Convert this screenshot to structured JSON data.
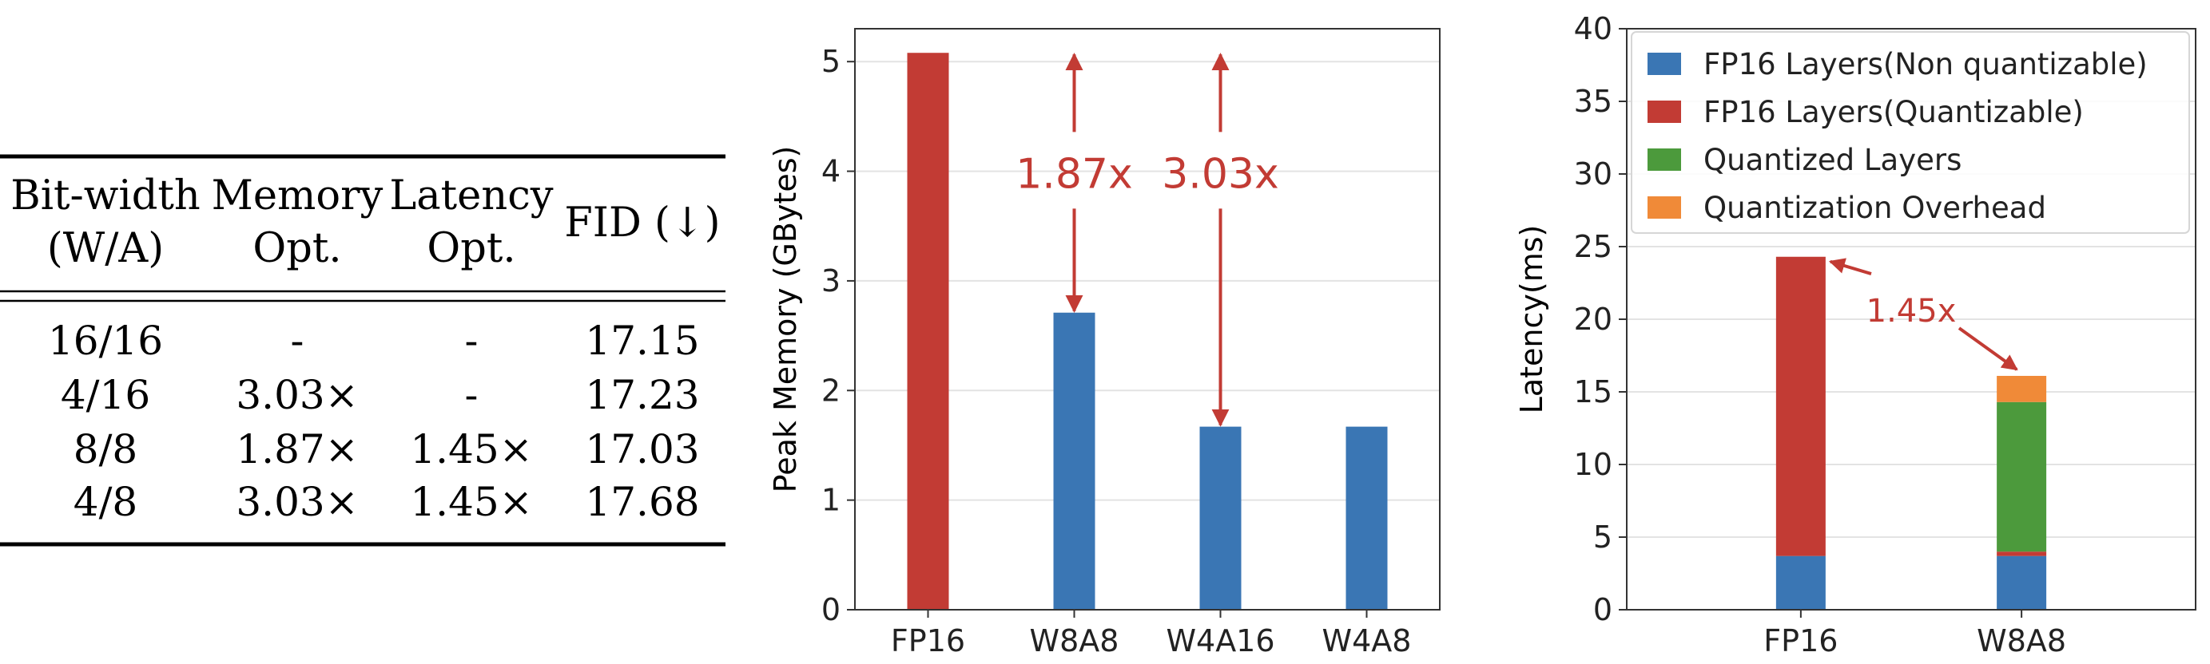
{
  "table": {
    "headers": [
      {
        "line1": "Bit-width",
        "line2": "(W/A)"
      },
      {
        "line1": "Memory",
        "line2": "Opt."
      },
      {
        "line1": "Latency",
        "line2": "Opt."
      },
      {
        "line1": "FID (↓)",
        "line2": ""
      }
    ],
    "rows": [
      [
        "16/16",
        "-",
        "-",
        "17.15"
      ],
      [
        "4/16",
        "3.03×",
        "-",
        "17.23"
      ],
      [
        "8/8",
        "1.87×",
        "1.45×",
        "17.03"
      ],
      [
        "4/8",
        "3.03×",
        "1.45×",
        "17.68"
      ]
    ]
  },
  "chart_data": [
    {
      "type": "bar",
      "categories": [
        "FP16",
        "W8A8",
        "W4A16",
        "W4A8"
      ],
      "values": [
        5.08,
        2.71,
        1.67,
        1.67
      ],
      "bar_colors": [
        "#c23b34",
        "#3a76b4",
        "#3a76b4",
        "#3a76b4"
      ],
      "ylabel": "Peak Memory (GBytes)",
      "xlabel": "",
      "ylim": [
        0,
        5.3
      ],
      "yticks": [
        0,
        1,
        2,
        3,
        4,
        5
      ],
      "grid": true,
      "annotations": [
        {
          "text": "1.87x",
          "from_category": "W8A8",
          "from_value": 5.08,
          "to_value": 2.71,
          "color": "#c23b34"
        },
        {
          "text": "3.03x",
          "from_category": "W4A16",
          "from_value": 5.08,
          "to_value": 1.67,
          "color": "#c23b34"
        }
      ]
    },
    {
      "type": "bar",
      "stacked": true,
      "categories": [
        "FP16",
        "W8A8"
      ],
      "series": [
        {
          "name": "FP16 Layers(Non quantizable)",
          "color": "#3a76b4",
          "values": [
            3.7,
            3.7
          ]
        },
        {
          "name": "FP16 Layers(Quantizable)",
          "color": "#c23b34",
          "values": [
            20.6,
            0.3
          ]
        },
        {
          "name": "Quantized Layers",
          "color": "#4c9a3c",
          "values": [
            0,
            10.3
          ]
        },
        {
          "name": "Quantization Overhead",
          "color": "#f08a38",
          "values": [
            0,
            1.8
          ]
        }
      ],
      "ylabel": "Latency(ms)",
      "xlabel": "",
      "ylim": [
        0,
        40
      ],
      "yticks": [
        0,
        5,
        10,
        15,
        20,
        25,
        30,
        35,
        40
      ],
      "grid": true,
      "legend_position": "top-right",
      "annotations": [
        {
          "text": "1.45x",
          "color": "#c23b34"
        }
      ]
    }
  ]
}
